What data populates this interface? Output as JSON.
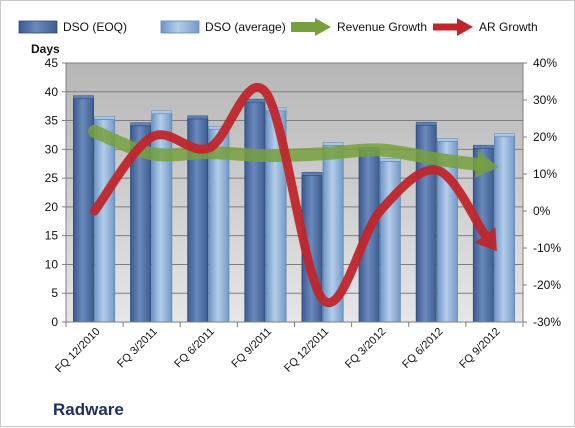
{
  "chart_data": {
    "type": "bar",
    "company": "Radware",
    "categories": [
      "FQ 12/2010",
      "FQ 3/2011",
      "FQ 6/2011",
      "FQ 9/2011",
      "FQ 12/2011",
      "FQ 3/2012",
      "FQ 6/2012",
      "FQ 9/2012"
    ],
    "ylabel": "Days",
    "ylim": [
      0,
      45
    ],
    "yticks": [
      "0",
      "5",
      "10",
      "15",
      "20",
      "25",
      "30",
      "35",
      "40",
      "45"
    ],
    "y2lim": [
      -30,
      40
    ],
    "y2ticks": [
      "-30%",
      "-20%",
      "-10%",
      "0%",
      "10%",
      "20%",
      "30%",
      "40%"
    ],
    "legend_position": "top",
    "series": [
      {
        "name": "DSO (EOQ)",
        "type": "bar",
        "axis": "left",
        "color": "#4f6fa5",
        "values": [
          38.8,
          34.1,
          35.3,
          38.2,
          25.5,
          29.8,
          34.2,
          30.2
        ]
      },
      {
        "name": "DSO (average)",
        "type": "bar",
        "axis": "left",
        "color": "#8fb3dc",
        "values": [
          35.2,
          36.2,
          33.5,
          36.7,
          30.7,
          27.9,
          31.4,
          32.2
        ]
      },
      {
        "name": "Revenue Growth",
        "type": "line",
        "axis": "right",
        "color": "#77a03d",
        "values": [
          21.5,
          15.5,
          15.8,
          15.0,
          15.5,
          16.5,
          14.0,
          12.0
        ]
      },
      {
        "name": "AR Growth",
        "type": "line",
        "axis": "right",
        "color": "#c0262c",
        "values": [
          0,
          20,
          17,
          32,
          -24,
          0,
          11,
          -10
        ]
      }
    ]
  }
}
